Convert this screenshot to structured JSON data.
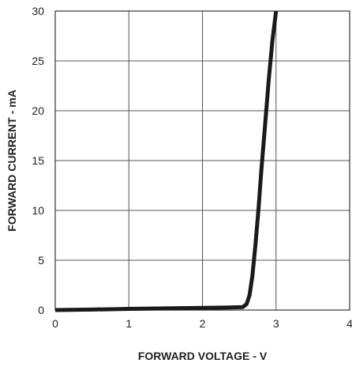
{
  "chart_data": {
    "type": "line",
    "xlabel": "FORWARD VOLTAGE - V",
    "ylabel": "FORWARD CURRENT - mA",
    "xlim": [
      0,
      4
    ],
    "ylim": [
      0,
      30
    ],
    "x_ticks": [
      "0",
      "1",
      "2",
      "3",
      "4"
    ],
    "y_ticks": [
      "0",
      "5",
      "10",
      "15",
      "20",
      "25",
      "30"
    ],
    "grid": true,
    "series": [
      {
        "x": [
          0,
          0.5,
          1.0,
          1.5,
          2.0,
          2.3,
          2.55,
          2.6,
          2.64,
          2.68,
          2.72,
          2.76,
          2.8,
          2.85,
          2.9,
          2.95,
          3.0
        ],
        "y": [
          0.0,
          0.05,
          0.12,
          0.17,
          0.22,
          0.25,
          0.3,
          0.6,
          1.5,
          3.5,
          6.5,
          10,
          14,
          18.5,
          23,
          27,
          30
        ]
      }
    ],
    "colors": {
      "line": "#1a1a1a",
      "grid": "#555555",
      "frame": "#333333"
    }
  }
}
